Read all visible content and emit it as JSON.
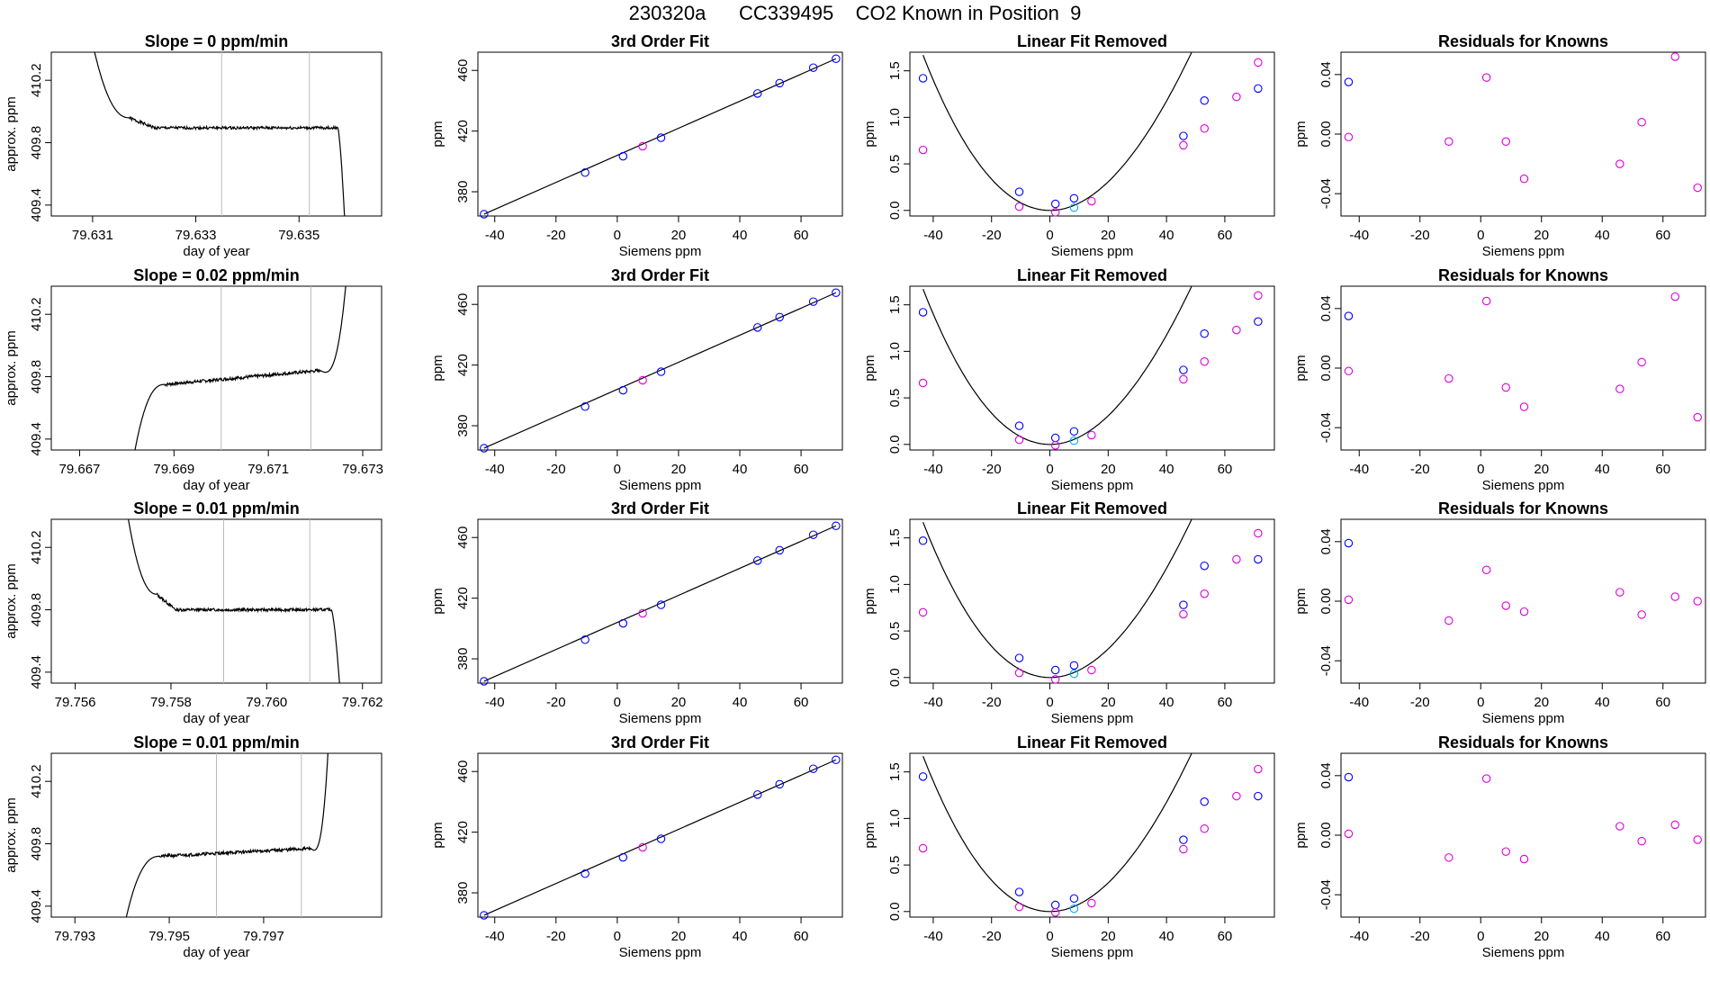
{
  "page": {
    "title": "230320a      CC339495    CO2 Known in Position  9"
  },
  "colors": {
    "axis": "#000000",
    "line": "#000000",
    "blue_point": "#0000ff",
    "magenta_point": "#dd00dd",
    "cyan_point": "#00aaff",
    "red_point": "#ff4444",
    "vline": "#bbbbbb"
  },
  "chart_data": [
    {
      "type": "line",
      "row": 0,
      "col": 0,
      "title": "Slope =  0  ppm/min",
      "xlabel": "day of year",
      "ylabel": "approx. ppm",
      "xlim": [
        79.6302,
        79.6366
      ],
      "ylim": [
        409.33,
        410.38
      ],
      "xticks": [
        79.631,
        79.633,
        79.635
      ],
      "xticklabels": [
        "79.631",
        "79.633",
        "79.635"
      ],
      "yticks": [
        409.4,
        409.8,
        410.2
      ],
      "yticklabels": [
        "409.4",
        "409.8",
        "410.2"
      ],
      "vlines": [
        79.6335,
        79.6352
      ],
      "trace": {
        "start": 79.6309,
        "t1": 79.6317,
        "t2": 79.6322,
        "plateau_end": 79.63575,
        "drop_end": 79.6359,
        "high": 410.6,
        "shoulder": 409.96,
        "plateau": 409.895,
        "slope": 0.0,
        "low": 409.2,
        "seed": 1
      }
    },
    {
      "type": "scatter",
      "row": 0,
      "col": 1,
      "title": "3rd Order Fit",
      "xlabel": "Siemens ppm",
      "ylabel": "ppm",
      "xlim": [
        -45.5,
        73.5
      ],
      "ylim": [
        364,
        472
      ],
      "xticks": [
        -40,
        -20,
        0,
        20,
        40,
        60
      ],
      "yticks": [
        380,
        420,
        460
      ],
      "fitline": true,
      "points_x": [
        -43.5,
        -10.5,
        1.9,
        8.3,
        14.3,
        45.8,
        53.0,
        64.0,
        71.4
      ],
      "points_y": [
        365.2,
        392.6,
        403.4,
        410.0,
        415.6,
        444.8,
        451.6,
        461.8,
        467.7
      ],
      "point_colors": [
        "b",
        "b",
        "b",
        "m",
        "b",
        "b",
        "b",
        "b",
        "b"
      ]
    },
    {
      "type": "scatter",
      "row": 0,
      "col": 2,
      "title": "Linear Fit Removed",
      "xlabel": "Siemens ppm",
      "ylabel": "ppm",
      "xlim": [
        -48,
        77
      ],
      "ylim": [
        -0.06,
        1.7
      ],
      "xticks": [
        -40,
        -20,
        0,
        20,
        40,
        60
      ],
      "yticks": [
        0.0,
        0.5,
        1.0,
        1.5
      ],
      "curve": {
        "vertex": 0.0,
        "a": 0.000805,
        "b": 4.3e-06
      },
      "points_x": [
        -43.5,
        -43.5,
        -10.5,
        -10.5,
        1.9,
        1.9,
        8.3,
        8.3,
        14.3,
        45.8,
        45.8,
        53.0,
        53.0,
        64.0,
        71.4,
        71.4
      ],
      "points_y": [
        1.42,
        0.65,
        0.2,
        0.04,
        0.07,
        -0.02,
        0.13,
        0.03,
        0.1,
        0.8,
        0.7,
        1.18,
        0.88,
        1.22,
        1.31,
        1.59
      ],
      "point_colors": [
        "b",
        "m",
        "b",
        "m",
        "b",
        "m",
        "b",
        "c",
        "m",
        "b",
        "m",
        "b",
        "m",
        "m",
        "b",
        "m"
      ]
    },
    {
      "type": "scatter",
      "row": 0,
      "col": 3,
      "title": "Residuals for Knowns",
      "xlabel": "Siemens ppm",
      "ylabel": "ppm",
      "xlim": [
        -46,
        74
      ],
      "ylim": [
        -0.055,
        0.055
      ],
      "xticks": [
        -40,
        -20,
        0,
        20,
        40,
        60
      ],
      "yticks": [
        -0.04,
        0.0,
        0.04
      ],
      "yticklabels": [
        "-0.04",
        "0.00",
        "0.04"
      ],
      "points_x": [
        -43.5,
        -43.5,
        -10.5,
        1.9,
        8.3,
        14.3,
        45.8,
        53.0,
        64.0,
        71.4
      ],
      "points_y": [
        0.035,
        -0.002,
        -0.005,
        0.038,
        -0.005,
        -0.03,
        -0.02,
        0.008,
        0.052,
        -0.036
      ],
      "point_colors": [
        "b",
        "m",
        "m",
        "m",
        "m",
        "m",
        "m",
        "m",
        "m",
        "m"
      ]
    },
    {
      "type": "line",
      "row": 1,
      "col": 0,
      "title": "Slope =  0.02  ppm/min",
      "xlabel": "day of year",
      "ylabel": "approx. ppm",
      "xlim": [
        79.6664,
        79.6734
      ],
      "ylim": [
        409.33,
        410.38
      ],
      "xticks": [
        79.667,
        79.669,
        79.671,
        79.673
      ],
      "xticklabels": [
        "79.667",
        "79.669",
        "79.671",
        "79.673"
      ],
      "yticks": [
        409.4,
        409.8,
        410.2
      ],
      "yticklabels": [
        "409.4",
        "409.8",
        "410.2"
      ],
      "vlines": [
        79.67,
        79.6719
      ],
      "rise": {
        "start": 79.6681,
        "t1": 79.6688,
        "plateau_end": 79.6721,
        "dip": 79.6723,
        "spike": 79.6727,
        "low": 409.2,
        "plateau0": 409.75,
        "plateau1": 409.84,
        "spike_top": 410.6,
        "seed": 7
      }
    },
    {
      "type": "scatter",
      "row": 1,
      "col": 1,
      "title": "3rd Order Fit",
      "xlabel": "Siemens ppm",
      "ylabel": "ppm",
      "xlim": [
        -45.5,
        73.5
      ],
      "ylim": [
        364,
        472
      ],
      "xticks": [
        -40,
        -20,
        0,
        20,
        40,
        60
      ],
      "yticks": [
        380,
        420,
        460
      ],
      "fitline": true,
      "points_x": [
        -43.5,
        -10.5,
        1.9,
        8.3,
        14.3,
        45.8,
        53.0,
        64.0,
        71.4
      ],
      "points_y": [
        365.2,
        392.6,
        403.4,
        410.0,
        415.6,
        444.8,
        451.6,
        461.8,
        467.7
      ],
      "point_colors": [
        "b",
        "b",
        "b",
        "m",
        "b",
        "b",
        "b",
        "b",
        "b"
      ]
    },
    {
      "type": "scatter",
      "row": 1,
      "col": 2,
      "title": "Linear Fit Removed",
      "xlabel": "Siemens ppm",
      "ylabel": "ppm",
      "xlim": [
        -48,
        77
      ],
      "ylim": [
        -0.06,
        1.7
      ],
      "xticks": [
        -40,
        -20,
        0,
        20,
        40,
        60
      ],
      "yticks": [
        0.0,
        0.5,
        1.0,
        1.5
      ],
      "curve": {
        "vertex": 0.0,
        "a": 0.000805,
        "b": 4.3e-06
      },
      "points_x": [
        -43.5,
        -43.5,
        -10.5,
        -10.5,
        1.9,
        1.9,
        8.3,
        8.3,
        14.3,
        45.8,
        45.8,
        53.0,
        53.0,
        64.0,
        71.4,
        71.4
      ],
      "points_y": [
        1.42,
        0.66,
        0.2,
        0.05,
        0.07,
        -0.01,
        0.14,
        0.04,
        0.1,
        0.8,
        0.7,
        1.19,
        0.89,
        1.23,
        1.32,
        1.6
      ],
      "point_colors": [
        "b",
        "m",
        "b",
        "m",
        "b",
        "m",
        "b",
        "c",
        "m",
        "b",
        "m",
        "b",
        "m",
        "m",
        "b",
        "m"
      ]
    },
    {
      "type": "scatter",
      "row": 1,
      "col": 3,
      "title": "Residuals for Knowns",
      "xlabel": "Siemens ppm",
      "ylabel": "ppm",
      "xlim": [
        -46,
        74
      ],
      "ylim": [
        -0.055,
        0.055
      ],
      "xticks": [
        -40,
        -20,
        0,
        20,
        40,
        60
      ],
      "yticks": [
        -0.04,
        0.0,
        0.04
      ],
      "yticklabels": [
        "-0.04",
        "0.00",
        "0.04"
      ],
      "points_x": [
        -43.5,
        -43.5,
        -10.5,
        1.9,
        8.3,
        14.3,
        45.8,
        53.0,
        64.0,
        71.4
      ],
      "points_y": [
        0.035,
        -0.002,
        -0.007,
        0.045,
        -0.013,
        -0.026,
        -0.014,
        0.004,
        0.048,
        -0.033
      ],
      "point_colors": [
        "b",
        "m",
        "m",
        "m",
        "m",
        "m",
        "m",
        "m",
        "m",
        "m"
      ]
    },
    {
      "type": "line",
      "row": 2,
      "col": 0,
      "title": "Slope =  0.01  ppm/min",
      "xlabel": "day of year",
      "ylabel": "approx. ppm",
      "xlim": [
        79.7555,
        79.7624
      ],
      "ylim": [
        409.33,
        410.38
      ],
      "xticks": [
        79.756,
        79.758,
        79.76,
        79.762
      ],
      "xticklabels": [
        "79.756",
        "79.758",
        "79.760",
        "79.762"
      ],
      "yticks": [
        409.4,
        409.8,
        410.2
      ],
      "yticklabels": [
        "409.4",
        "409.8",
        "410.2"
      ],
      "vlines": [
        79.7591,
        79.7609
      ],
      "trace": {
        "start": 79.757,
        "t1": 79.7577,
        "t2": 79.7581,
        "plateau_end": 79.76135,
        "drop_end": 79.76155,
        "high": 410.6,
        "shoulder": 409.9,
        "plateau": 409.8,
        "slope": 0.0,
        "low": 409.2,
        "seed": 13
      }
    },
    {
      "type": "scatter",
      "row": 2,
      "col": 1,
      "title": "3rd Order Fit",
      "xlabel": "Siemens ppm",
      "ylabel": "ppm",
      "xlim": [
        -45.5,
        73.5
      ],
      "ylim": [
        364,
        472
      ],
      "xticks": [
        -40,
        -20,
        0,
        20,
        40,
        60
      ],
      "yticks": [
        380,
        420,
        460
      ],
      "fitline": true,
      "points_x": [
        -43.5,
        -10.5,
        1.9,
        8.3,
        14.3,
        45.8,
        53.0,
        64.0,
        71.4
      ],
      "points_y": [
        365.2,
        392.6,
        403.4,
        410.0,
        415.6,
        444.8,
        451.6,
        461.8,
        467.7
      ],
      "point_colors": [
        "b",
        "b",
        "b",
        "m",
        "b",
        "b",
        "b",
        "b",
        "b"
      ]
    },
    {
      "type": "scatter",
      "row": 2,
      "col": 2,
      "title": "Linear Fit Removed",
      "xlabel": "Siemens ppm",
      "ylabel": "ppm",
      "xlim": [
        -48,
        77
      ],
      "ylim": [
        -0.06,
        1.7
      ],
      "xticks": [
        -40,
        -20,
        0,
        20,
        40,
        60
      ],
      "yticks": [
        0.0,
        0.5,
        1.0,
        1.5
      ],
      "curve": {
        "vertex": 0.0,
        "a": 0.000805,
        "b": 4.3e-06
      },
      "points_x": [
        -43.5,
        -43.5,
        -10.5,
        -10.5,
        1.9,
        1.9,
        8.3,
        8.3,
        14.3,
        45.8,
        45.8,
        53.0,
        53.0,
        64.0,
        71.4,
        71.4
      ],
      "points_y": [
        1.47,
        0.7,
        0.21,
        0.05,
        0.08,
        -0.02,
        0.13,
        0.04,
        0.08,
        0.78,
        0.68,
        1.2,
        0.9,
        1.27,
        1.27,
        1.55
      ],
      "point_colors": [
        "b",
        "m",
        "b",
        "m",
        "b",
        "m",
        "b",
        "c",
        "m",
        "b",
        "m",
        "b",
        "m",
        "m",
        "b",
        "m"
      ]
    },
    {
      "type": "scatter",
      "row": 2,
      "col": 3,
      "title": "Residuals for Knowns",
      "xlabel": "Siemens ppm",
      "ylabel": "ppm",
      "xlim": [
        -46,
        74
      ],
      "ylim": [
        -0.055,
        0.055
      ],
      "xticks": [
        -40,
        -20,
        0,
        20,
        40,
        60
      ],
      "yticks": [
        -0.04,
        0.0,
        0.04
      ],
      "yticklabels": [
        "-0.04",
        "0.00",
        "0.04"
      ],
      "points_x": [
        -43.5,
        -43.5,
        -10.5,
        1.9,
        8.3,
        14.3,
        45.8,
        53.0,
        64.0,
        71.4
      ],
      "points_y": [
        0.039,
        0.001,
        -0.013,
        0.021,
        -0.003,
        -0.007,
        0.006,
        -0.009,
        0.003,
        0.0
      ],
      "point_colors": [
        "b",
        "m",
        "m",
        "m",
        "m",
        "m",
        "m",
        "m",
        "m",
        "m"
      ]
    },
    {
      "type": "line",
      "row": 3,
      "col": 0,
      "title": "Slope =  0.01  ppm/min",
      "xlabel": "day of year",
      "ylabel": "approx. ppm",
      "xlim": [
        79.7925,
        79.7995
      ],
      "ylim": [
        409.33,
        410.38
      ],
      "xticks": [
        79.793,
        79.795,
        79.797
      ],
      "xticklabels": [
        "79.793",
        "79.795",
        "79.797"
      ],
      "yticks": [
        409.4,
        409.8,
        410.2
      ],
      "yticklabels": [
        "409.4",
        "409.8",
        "410.2"
      ],
      "vlines": [
        79.796,
        79.7978
      ],
      "rise": {
        "start": 79.794,
        "t1": 79.7948,
        "plateau_end": 79.798,
        "dip": 79.798,
        "spike": 79.7984,
        "low": 409.2,
        "plateau0": 409.72,
        "plateau1": 409.77,
        "spike_top": 410.6,
        "seed": 21
      }
    },
    {
      "type": "scatter",
      "row": 3,
      "col": 1,
      "title": "3rd Order Fit",
      "xlabel": "Siemens ppm",
      "ylabel": "ppm",
      "xlim": [
        -45.5,
        73.5
      ],
      "ylim": [
        364,
        472
      ],
      "xticks": [
        -40,
        -20,
        0,
        20,
        40,
        60
      ],
      "yticks": [
        380,
        420,
        460
      ],
      "fitline": true,
      "points_x": [
        -43.5,
        -10.5,
        1.9,
        8.3,
        14.3,
        45.8,
        53.0,
        64.0,
        71.4
      ],
      "points_y": [
        365.2,
        392.6,
        403.4,
        410.0,
        415.6,
        444.8,
        451.6,
        461.8,
        467.7
      ],
      "point_colors": [
        "b",
        "b",
        "b",
        "m",
        "b",
        "b",
        "b",
        "b",
        "b"
      ]
    },
    {
      "type": "scatter",
      "row": 3,
      "col": 2,
      "title": "Linear Fit Removed",
      "xlabel": "Siemens ppm",
      "ylabel": "ppm",
      "xlim": [
        -48,
        77
      ],
      "ylim": [
        -0.06,
        1.7
      ],
      "xticks": [
        -40,
        -20,
        0,
        20,
        40,
        60
      ],
      "yticks": [
        0.0,
        0.5,
        1.0,
        1.5
      ],
      "curve": {
        "vertex": 0.0,
        "a": 0.000805,
        "b": 4.3e-06
      },
      "points_x": [
        -43.5,
        -43.5,
        -10.5,
        -10.5,
        1.9,
        1.9,
        8.3,
        8.3,
        14.3,
        45.8,
        45.8,
        53.0,
        53.0,
        64.0,
        71.4,
        71.4
      ],
      "points_y": [
        1.45,
        0.68,
        0.21,
        0.05,
        0.07,
        -0.01,
        0.14,
        0.03,
        0.09,
        0.77,
        0.67,
        1.18,
        0.89,
        1.24,
        1.24,
        1.53
      ],
      "point_colors": [
        "b",
        "m",
        "b",
        "m",
        "b",
        "m",
        "b",
        "c",
        "m",
        "b",
        "m",
        "b",
        "m",
        "m",
        "b",
        "m"
      ]
    },
    {
      "type": "scatter",
      "row": 3,
      "col": 3,
      "title": "Residuals for Knowns",
      "xlabel": "Siemens ppm",
      "ylabel": "ppm",
      "xlim": [
        -46,
        74
      ],
      "ylim": [
        -0.055,
        0.055
      ],
      "xticks": [
        -40,
        -20,
        0,
        20,
        40,
        60
      ],
      "yticks": [
        -0.04,
        0.0,
        0.04
      ],
      "yticklabels": [
        "-0.04",
        "0.00",
        "0.04"
      ],
      "points_x": [
        -43.5,
        -43.5,
        -10.5,
        1.9,
        8.3,
        14.3,
        45.8,
        53.0,
        64.0,
        71.4
      ],
      "points_y": [
        0.039,
        0.001,
        -0.015,
        0.038,
        -0.011,
        -0.016,
        0.006,
        -0.004,
        0.007,
        -0.003
      ],
      "point_colors": [
        "b",
        "m",
        "m",
        "m",
        "m",
        "m",
        "m",
        "m",
        "m",
        "m"
      ]
    }
  ]
}
